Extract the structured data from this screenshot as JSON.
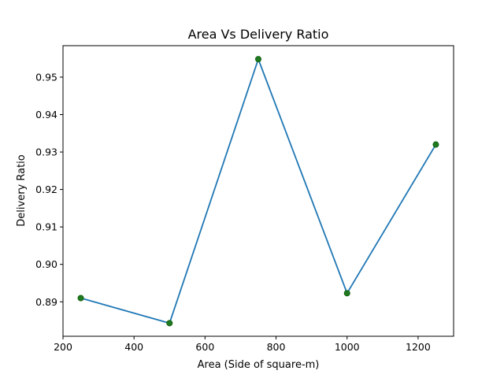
{
  "chart_data": {
    "type": "line",
    "title": "Area Vs Delivery Ratio",
    "xlabel": "Area (Side of square-m)",
    "ylabel": "Delivery Ratio",
    "xlim": [
      200,
      1300
    ],
    "ylim": [
      0.8808,
      0.9584
    ],
    "xticks": [
      200,
      400,
      600,
      800,
      1000,
      1200
    ],
    "yticks": [
      0.89,
      0.9,
      0.91,
      0.92,
      0.93,
      0.94,
      0.95
    ],
    "ytick_labels": [
      "0.89",
      "0.90",
      "0.91",
      "0.92",
      "0.93",
      "0.94",
      "0.95"
    ],
    "grid": false,
    "series": [
      {
        "color": "#1f77b4",
        "marker_color": "#1f7a1f",
        "x": [
          250,
          500,
          750,
          1000,
          1250
        ],
        "y": [
          0.891,
          0.8843,
          0.9548,
          0.8923,
          0.932
        ]
      }
    ]
  }
}
